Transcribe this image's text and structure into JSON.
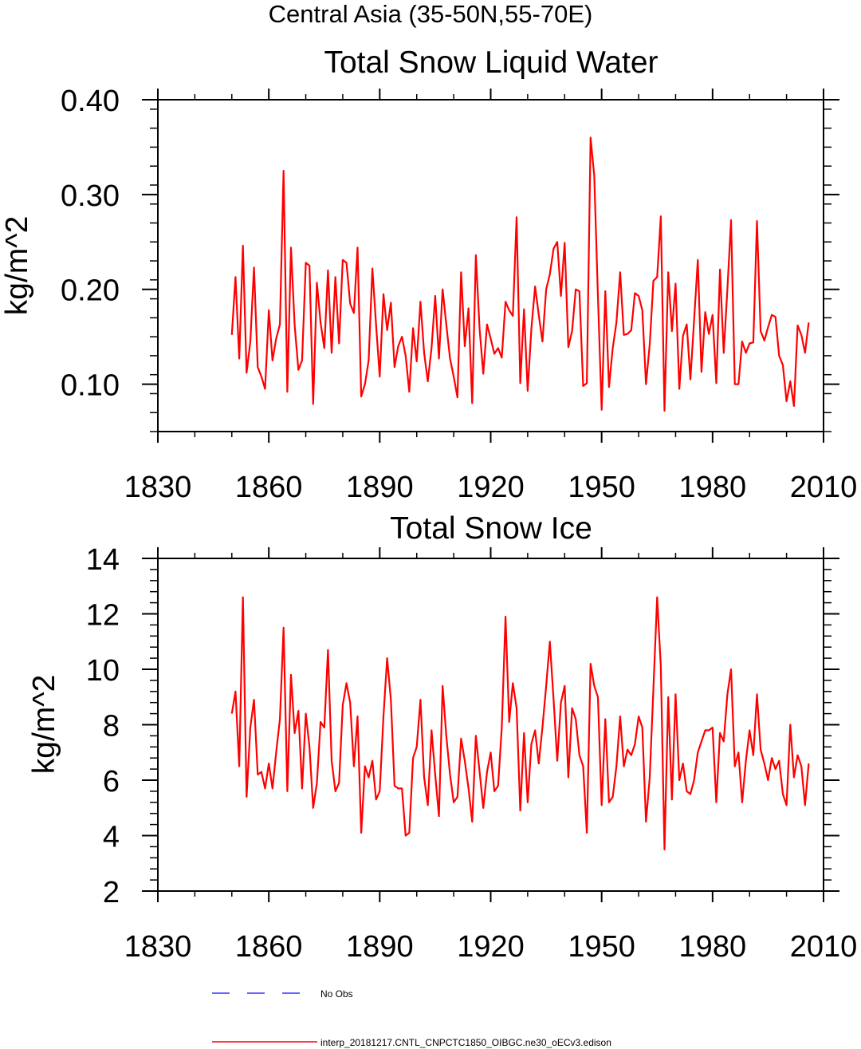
{
  "figure_title": "Central Asia (35-50N,55-70E)",
  "colors": {
    "model": "#ff0000",
    "obs": "#3333ff",
    "axis": "#000000"
  },
  "legend": {
    "entries": [
      {
        "label": "No Obs",
        "color": "#3333ff",
        "style": "dashed"
      },
      {
        "label": "interp_20181217.CNTL_CNPCTC1850_OIBGC.ne30_oECv3.edison",
        "color": "#ff0000",
        "style": "solid"
      }
    ]
  },
  "chart_data": [
    {
      "type": "line",
      "title": "Total Snow Liquid Water",
      "xlabel": "",
      "ylabel": "kg/m^2",
      "xlim": [
        1830,
        2010
      ],
      "ylim": [
        0.05,
        0.4
      ],
      "xticks": [
        1830,
        1860,
        1890,
        1920,
        1950,
        1980,
        2010
      ],
      "yticks": [
        0.1,
        0.2,
        0.3,
        0.4
      ],
      "ytick_labels": [
        "0.10",
        "0.20",
        "0.30",
        "0.40"
      ],
      "series": [
        {
          "name": "interp_20181217.CNTL_CNPCTC1850_OIBGC.ne30_oECv3.edison",
          "x_start": 1850,
          "values": [
            0.152,
            0.213,
            0.127,
            0.246,
            0.112,
            0.145,
            0.223,
            0.118,
            0.108,
            0.095,
            0.178,
            0.125,
            0.148,
            0.163,
            0.325,
            0.092,
            0.244,
            0.162,
            0.115,
            0.125,
            0.228,
            0.225,
            0.079,
            0.207,
            0.165,
            0.138,
            0.22,
            0.133,
            0.213,
            0.143,
            0.231,
            0.228,
            0.185,
            0.175,
            0.244,
            0.087,
            0.1,
            0.125,
            0.222,
            0.163,
            0.108,
            0.195,
            0.157,
            0.186,
            0.118,
            0.14,
            0.15,
            0.13,
            0.092,
            0.159,
            0.124,
            0.187,
            0.133,
            0.103,
            0.138,
            0.193,
            0.127,
            0.2,
            0.163,
            0.127,
            0.108,
            0.086,
            0.218,
            0.14,
            0.18,
            0.08,
            0.236,
            0.158,
            0.111,
            0.163,
            0.148,
            0.132,
            0.138,
            0.128,
            0.187,
            0.178,
            0.172,
            0.276,
            0.101,
            0.179,
            0.093,
            0.158,
            0.203,
            0.173,
            0.145,
            0.2,
            0.216,
            0.243,
            0.25,
            0.193,
            0.249,
            0.139,
            0.156,
            0.2,
            0.198,
            0.098,
            0.101,
            0.36,
            0.32,
            0.193,
            0.073,
            0.198,
            0.097,
            0.138,
            0.165,
            0.218,
            0.152,
            0.153,
            0.157,
            0.196,
            0.193,
            0.178,
            0.1,
            0.142,
            0.209,
            0.213,
            0.277,
            0.072,
            0.218,
            0.156,
            0.206,
            0.095,
            0.151,
            0.163,
            0.105,
            0.167,
            0.231,
            0.113,
            0.176,
            0.153,
            0.173,
            0.101,
            0.221,
            0.133,
            0.2,
            0.273,
            0.1,
            0.1,
            0.145,
            0.133,
            0.143,
            0.144,
            0.272,
            0.156,
            0.146,
            0.16,
            0.173,
            0.171,
            0.13,
            0.12,
            0.082,
            0.103,
            0.077,
            0.162,
            0.152,
            0.133,
            0.165
          ]
        }
      ]
    },
    {
      "type": "line",
      "title": "Total Snow Ice",
      "xlabel": "",
      "ylabel": "kg/m^2",
      "xlim": [
        1830,
        2010
      ],
      "ylim": [
        2,
        14
      ],
      "xticks": [
        1830,
        1860,
        1890,
        1920,
        1950,
        1980,
        2010
      ],
      "yticks": [
        2,
        4,
        6,
        8,
        10,
        12,
        14
      ],
      "ytick_labels": [
        "2",
        "4",
        "6",
        "8",
        "10",
        "12",
        "14"
      ],
      "series": [
        {
          "name": "interp_20181217.CNTL_CNPCTC1850_OIBGC.ne30_oECv3.edison",
          "x_start": 1850,
          "values": [
            8.4,
            9.2,
            6.5,
            12.6,
            5.4,
            7.9,
            8.9,
            6.2,
            6.3,
            5.7,
            6.6,
            5.7,
            7.0,
            8.2,
            11.5,
            5.6,
            9.8,
            7.7,
            8.5,
            5.7,
            8.4,
            7.2,
            5.0,
            5.9,
            8.1,
            7.9,
            10.7,
            6.7,
            5.6,
            5.9,
            8.7,
            9.5,
            8.8,
            6.5,
            8.3,
            4.1,
            6.5,
            6.1,
            6.7,
            5.3,
            5.6,
            8.3,
            10.4,
            8.9,
            5.8,
            5.7,
            5.7,
            4.0,
            4.1,
            6.8,
            7.2,
            8.9,
            6.1,
            5.1,
            7.8,
            6.2,
            4.7,
            9.4,
            7.6,
            6.2,
            5.2,
            5.4,
            7.5,
            6.7,
            5.7,
            4.5,
            7.6,
            6.3,
            5.0,
            6.3,
            7.0,
            5.6,
            5.8,
            7.9,
            11.9,
            8.1,
            9.5,
            8.6,
            4.9,
            7.7,
            5.2,
            7.3,
            7.8,
            6.6,
            7.9,
            9.4,
            11.0,
            8.9,
            6.7,
            8.8,
            9.4,
            6.1,
            8.6,
            8.2,
            6.9,
            6.5,
            4.1,
            10.2,
            9.4,
            9.0,
            5.1,
            8.2,
            5.2,
            5.4,
            6.5,
            8.3,
            6.5,
            7.1,
            6.9,
            7.3,
            8.3,
            7.9,
            4.5,
            6.1,
            9.3,
            12.6,
            10.1,
            3.5,
            9.0,
            5.3,
            9.1,
            6.0,
            6.6,
            5.6,
            5.5,
            6.0,
            7.0,
            7.4,
            7.8,
            7.8,
            7.9,
            5.2,
            7.7,
            7.4,
            9.1,
            10.0,
            6.5,
            7.0,
            5.2,
            6.7,
            7.8,
            6.9,
            9.1,
            7.1,
            6.6,
            6.0,
            6.8,
            6.4,
            6.7,
            5.5,
            5.1,
            8.0,
            6.1,
            6.9,
            6.5,
            5.1,
            6.6
          ]
        }
      ]
    }
  ]
}
